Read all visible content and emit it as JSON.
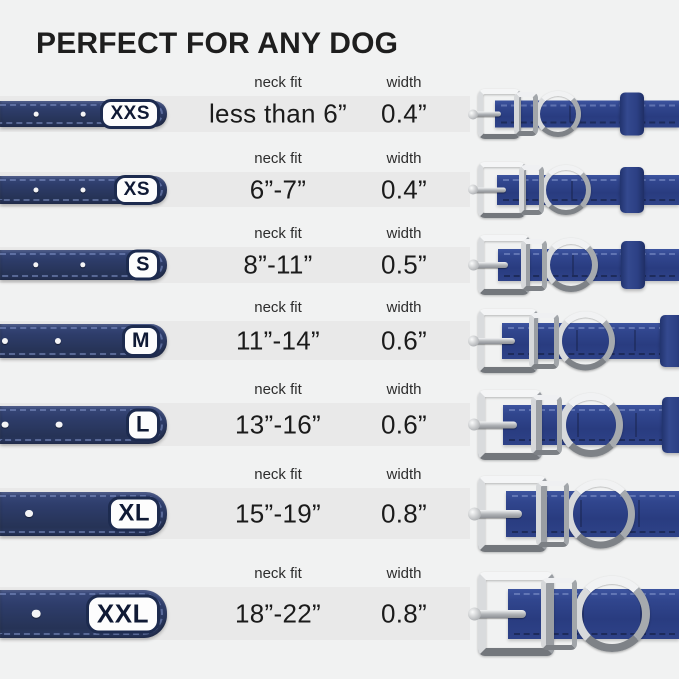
{
  "title": "PERFECT FOR ANY DOG",
  "columns": {
    "neck_fit": "neck fit",
    "width": "width"
  },
  "rows": [
    {
      "size": "XXS",
      "neck_fit": "less than 6”",
      "width": "0.4”"
    },
    {
      "size": "XS",
      "neck_fit": "6”-7”",
      "width": "0.4”"
    },
    {
      "size": "S",
      "neck_fit": "8”-11”",
      "width": "0.5”"
    },
    {
      "size": "M",
      "neck_fit": "11”-14”",
      "width": "0.6”"
    },
    {
      "size": "L",
      "neck_fit": "13”-16”",
      "width": "0.6”"
    },
    {
      "size": "XL",
      "neck_fit": "15”-19”",
      "width": "0.8”"
    },
    {
      "size": "XXL",
      "neck_fit": "18”-22”",
      "width": "0.8”"
    }
  ],
  "colors": {
    "background": "#f1f2f2",
    "row_band": "#e9e9e9",
    "collar_navy_dark": "#2b3a64",
    "collar_navy_royal": "#2e4288",
    "metal_silver": "#c9ccce",
    "badge_border_navy": "#1d2b4f",
    "text_dark": "#1b1b1b"
  },
  "chart_data": {
    "type": "table",
    "title": "PERFECT FOR ANY DOG",
    "columns": [
      "size",
      "neck fit",
      "width"
    ],
    "rows": [
      [
        "XXS",
        "less than 6”",
        "0.4”"
      ],
      [
        "XS",
        "6”-7”",
        "0.4”"
      ],
      [
        "S",
        "8”-11”",
        "0.5”"
      ],
      [
        "M",
        "11”-14”",
        "0.6”"
      ],
      [
        "L",
        "13”-16”",
        "0.6”"
      ],
      [
        "XL",
        "15”-19”",
        "0.8”"
      ],
      [
        "XXL",
        "18”-22”",
        "0.8”"
      ]
    ]
  }
}
